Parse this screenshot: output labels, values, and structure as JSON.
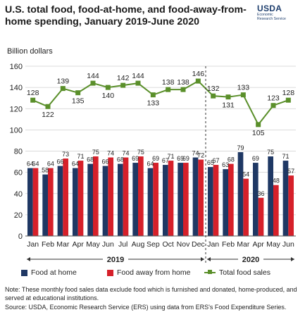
{
  "header": {
    "title": "U.S. total food, food-at-home, and food-away-from-home spending, January 2019-June 2020",
    "logo_mark": "USDA",
    "logo_sub_1": "Economic",
    "logo_sub_2": "Research Service"
  },
  "footer": {
    "note": "Note: These monthly food sales data exclude food which is furnished and donated, home-produced, and served at educational institutions.",
    "source": "Source: USDA, Economic Research Service (ERS) using data from ERS's Food Expenditure Series."
  },
  "colors": {
    "food_at_home": "#1f3864",
    "food_away": "#d6202a",
    "total": "#5a8f2a",
    "grid": "#cfcfcf"
  },
  "chart_data": {
    "type": "bar+line",
    "ylabel": "Billion dollars",
    "ylim": [
      0,
      160
    ],
    "yticks": [
      0,
      20,
      40,
      60,
      80,
      100,
      120,
      140,
      160
    ],
    "grid": true,
    "categories": [
      "Jan",
      "Feb",
      "Mar",
      "Apr",
      "May",
      "Jun",
      "Jul",
      "Aug",
      "Sep",
      "Oct",
      "Nov",
      "Dec",
      "Jan",
      "Feb",
      "Mar",
      "Apr",
      "May",
      "Jun"
    ],
    "year_groups": [
      {
        "label": "2019",
        "start": 0,
        "end": 11
      },
      {
        "label": "2020",
        "start": 12,
        "end": 17
      }
    ],
    "divider_after_index": 11,
    "series": [
      {
        "name": "Food at home",
        "kind": "bar",
        "values": [
          64,
          58,
          66,
          64,
          68,
          66,
          68,
          69,
          64,
          67,
          69,
          74,
          65,
          63,
          79,
          69,
          75,
          71
        ]
      },
      {
        "name": "Food away from home",
        "kind": "bar",
        "values": [
          64,
          64,
          73,
          71,
          75,
          74,
          74,
          75,
          69,
          71,
          69,
          72,
          67,
          68,
          54,
          36,
          48,
          57
        ]
      },
      {
        "name": "Total food sales",
        "kind": "line",
        "values": [
          128,
          122,
          139,
          135,
          144,
          140,
          142,
          144,
          133,
          138,
          138,
          146,
          132,
          131,
          133,
          105,
          123,
          128
        ]
      }
    ],
    "legend_position": "bottom"
  }
}
